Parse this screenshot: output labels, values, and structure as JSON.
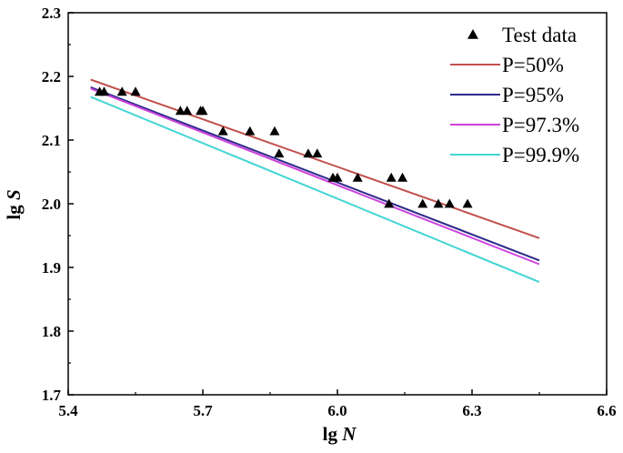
{
  "chart_data": {
    "type": "scatter",
    "xlabel": {
      "prefix": "lg ",
      "var": "N"
    },
    "ylabel": {
      "prefix": "lg ",
      "var": "S"
    },
    "xlim": [
      5.4,
      6.6
    ],
    "ylim": [
      1.7,
      2.3
    ],
    "xticks": [
      "5.4",
      "5.7",
      "6.0",
      "6.3",
      "6.6"
    ],
    "yticks": [
      "1.7",
      "1.8",
      "1.9",
      "2.0",
      "2.1",
      "2.2",
      "2.3"
    ],
    "legend_position": "top-right",
    "scatter_series": {
      "name": "Test data",
      "color": "#000000",
      "marker": "triangle",
      "points": [
        [
          5.47,
          2.176
        ],
        [
          5.48,
          2.176
        ],
        [
          5.52,
          2.176
        ],
        [
          5.55,
          2.176
        ],
        [
          5.65,
          2.146
        ],
        [
          5.665,
          2.146
        ],
        [
          5.695,
          2.146
        ],
        [
          5.7,
          2.146
        ],
        [
          5.745,
          2.114
        ],
        [
          5.805,
          2.114
        ],
        [
          5.86,
          2.114
        ],
        [
          5.87,
          2.079
        ],
        [
          5.935,
          2.079
        ],
        [
          5.955,
          2.079
        ],
        [
          5.99,
          2.041
        ],
        [
          6.0,
          2.041
        ],
        [
          6.045,
          2.041
        ],
        [
          6.12,
          2.041
        ],
        [
          6.145,
          2.041
        ],
        [
          6.115,
          2.0
        ],
        [
          6.19,
          2.0
        ],
        [
          6.225,
          2.0
        ],
        [
          6.25,
          2.0
        ],
        [
          6.29,
          2.0
        ]
      ]
    },
    "line_series": [
      {
        "name": "P=50%",
        "color": "#c0504d",
        "x": [
          5.45,
          6.45
        ],
        "y": [
          2.195,
          1.946
        ]
      },
      {
        "name": "P=95%",
        "color": "#2e2a8a",
        "x": [
          5.45,
          6.45
        ],
        "y": [
          2.183,
          1.911
        ]
      },
      {
        "name": "P=97.3%",
        "color": "#cc44dd",
        "x": [
          5.45,
          6.45
        ],
        "y": [
          2.181,
          1.905
        ]
      },
      {
        "name": "P=99.9%",
        "color": "#44d4d4",
        "x": [
          5.45,
          6.45
        ],
        "y": [
          2.168,
          1.877
        ]
      }
    ]
  }
}
